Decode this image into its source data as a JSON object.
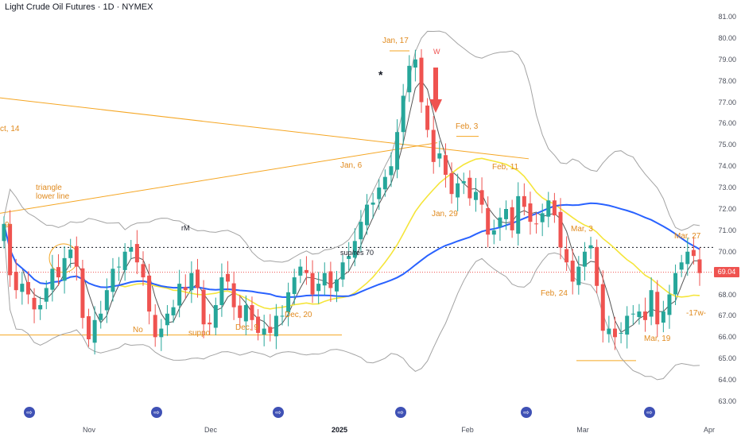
{
  "header": {
    "title": "Light Crude Oil Futures · 1D · NYMEX"
  },
  "price_axis": {
    "ticks": [
      "81.00",
      "80.00",
      "79.00",
      "78.00",
      "77.00",
      "76.00",
      "75.00",
      "74.00",
      "73.00",
      "72.00",
      "71.00",
      "70.00",
      "69.04",
      "68.00",
      "67.00",
      "66.00",
      "65.00",
      "64.00",
      "63.00"
    ],
    "last_price": "69.04"
  },
  "time_axis": {
    "ticks": [
      {
        "label": "Nov"
      },
      {
        "label": "Dec"
      },
      {
        "label": "2025",
        "bold": true
      },
      {
        "label": "Feb"
      },
      {
        "label": "Mar"
      },
      {
        "label": "Apr"
      }
    ]
  },
  "annotations": {
    "jan17": "Jan, 17",
    "w": "W",
    "feb3": "Feb, 3",
    "jan6": "Jan, 6",
    "feb11": "Feb, 11",
    "oct14": "ct, 14",
    "triangle": "triangle",
    "lower_line": "lower line",
    "jan29": "Jan, 29",
    "r9": "9-",
    "rm": "rM",
    "mar3": "Mar, 3",
    "mar27": "Mar, 27",
    "supres": "sup/res 70",
    "feb24": "Feb, 24",
    "dec20": "Dec, 20",
    "dec9": "Dec, 9",
    "nov": "No",
    "supp": "suppo",
    "w17": "-17w-",
    "mar19": "Mar, 19",
    "star": "*"
  },
  "colors": {
    "up": "#26a69a",
    "down": "#ef5350",
    "ma_fast": "#f5e53a",
    "ma_slow": "#2962ff",
    "bands": "#a3a3a3",
    "trendline": "#f5a623"
  },
  "chart_data": {
    "type": "candlestick",
    "title": "Light Crude Oil Futures · 1D · NYMEX",
    "ylim": [
      63,
      81
    ],
    "x_ticks": [
      "Nov",
      "Dec",
      "2025",
      "Feb",
      "Mar",
      "Apr"
    ],
    "series": [
      {
        "name": "price",
        "values": [
          71.3,
          68.9,
          68.2,
          68.5,
          68.0,
          67.3,
          67.5,
          68.3,
          69.2,
          68.8,
          69.7,
          70.1,
          69.3,
          66.9,
          65.9,
          66.8,
          67.1,
          68.2,
          69.2,
          69.3,
          70.0,
          70.2,
          69.5,
          68.8,
          67.2,
          66.0,
          66.4,
          67.1,
          67.4,
          68.5,
          68.2,
          69.0,
          68.3,
          66.6,
          66.6,
          67.5,
          68.8,
          68.6,
          67.4,
          66.9,
          67.5,
          66.8,
          66.2,
          66.4,
          66.2,
          67.0,
          67.0,
          68.1,
          68.8,
          69.3,
          69.0,
          68.0,
          68.5,
          69.0,
          68.3,
          68.7,
          69.5,
          69.8,
          70.5,
          71.4,
          72.2,
          72.3,
          73.0,
          73.5,
          74.0,
          75.6,
          77.3,
          78.7,
          79.0,
          77.0,
          75.7,
          74.2,
          74.6,
          73.6,
          72.7,
          73.2,
          73.3,
          72.5,
          72.8,
          72.2,
          70.8,
          71.0,
          71.6,
          72.0,
          71.0,
          72.6,
          72.1,
          71.4,
          71.3,
          71.8,
          72.4,
          71.7,
          70.2,
          69.5,
          68.6,
          69.3,
          70.0,
          70.3,
          68.4,
          66.3,
          66.4,
          66.0,
          66.2,
          67.0,
          67.1,
          67.2,
          66.8,
          68.2,
          66.6,
          67.2,
          68.0,
          69.0,
          69.5,
          70.0,
          69.8,
          69.0
        ]
      }
    ]
  }
}
